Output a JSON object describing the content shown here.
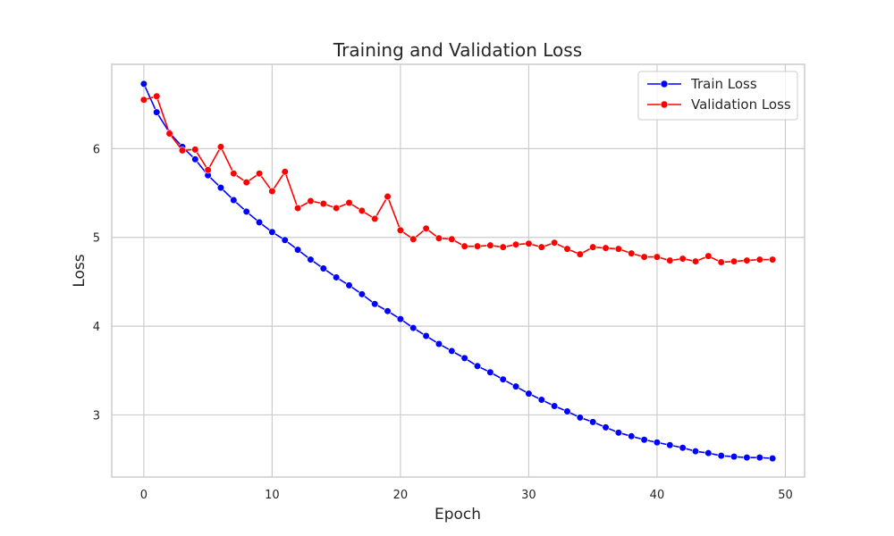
{
  "chart_data": {
    "type": "line",
    "title": "Training and Validation Loss",
    "xlabel": "Epoch",
    "ylabel": "Loss",
    "xlim": [
      -2.5,
      51.5
    ],
    "ylim": [
      2.3,
      6.95
    ],
    "xticks": [
      0,
      10,
      20,
      30,
      40,
      50
    ],
    "yticks": [
      3,
      4,
      5,
      6
    ],
    "grid": true,
    "legend_position": "top-right",
    "x": [
      0,
      1,
      2,
      3,
      4,
      5,
      6,
      7,
      8,
      9,
      10,
      11,
      12,
      13,
      14,
      15,
      16,
      17,
      18,
      19,
      20,
      21,
      22,
      23,
      24,
      25,
      26,
      27,
      28,
      29,
      30,
      31,
      32,
      33,
      34,
      35,
      36,
      37,
      38,
      39,
      40,
      41,
      42,
      43,
      44,
      45,
      46,
      47,
      48,
      49
    ],
    "series": [
      {
        "name": "Train Loss",
        "color": "#0000ff",
        "marker": "circle",
        "values": [
          6.73,
          6.41,
          6.18,
          6.02,
          5.88,
          5.7,
          5.56,
          5.42,
          5.29,
          5.17,
          5.06,
          4.97,
          4.86,
          4.75,
          4.65,
          4.55,
          4.46,
          4.36,
          4.25,
          4.17,
          4.08,
          3.98,
          3.89,
          3.8,
          3.72,
          3.64,
          3.55,
          3.48,
          3.4,
          3.32,
          3.24,
          3.17,
          3.1,
          3.04,
          2.97,
          2.92,
          2.86,
          2.8,
          2.76,
          2.72,
          2.69,
          2.66,
          2.63,
          2.59,
          2.57,
          2.54,
          2.53,
          2.52,
          2.52,
          2.51
        ]
      },
      {
        "name": "Validation Loss",
        "color": "#ff0000",
        "marker": "circle",
        "values": [
          6.55,
          6.59,
          6.17,
          5.98,
          5.99,
          5.76,
          6.02,
          5.72,
          5.62,
          5.72,
          5.52,
          5.74,
          5.33,
          5.41,
          5.38,
          5.33,
          5.39,
          5.3,
          5.21,
          5.46,
          5.08,
          4.98,
          5.1,
          4.99,
          4.98,
          4.9,
          4.9,
          4.91,
          4.89,
          4.92,
          4.93,
          4.89,
          4.94,
          4.87,
          4.81,
          4.89,
          4.88,
          4.87,
          4.82,
          4.78,
          4.78,
          4.74,
          4.76,
          4.73,
          4.79,
          4.72,
          4.73,
          4.74,
          4.75,
          4.75
        ]
      }
    ]
  }
}
